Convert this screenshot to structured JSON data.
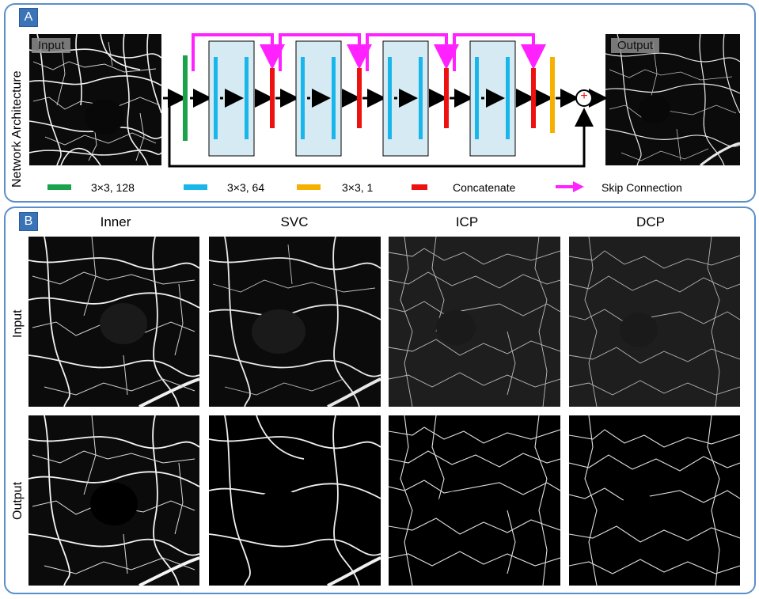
{
  "panel_a": {
    "label": "A",
    "side_title": "Network Architecture",
    "input_tag": "Input",
    "output_tag": "Output",
    "colors": {
      "green": "#1aa34a",
      "blue": "#19b6ea",
      "yellow": "#f5b000",
      "red": "#ee1111",
      "magenta": "#ff22ff",
      "block_fill": "#d6eaf3"
    },
    "legend": [
      {
        "color": "#1aa34a",
        "text": "3×3, 128"
      },
      {
        "color": "#19b6ea",
        "text": "3×3, 64"
      },
      {
        "color": "#f5b000",
        "text": "3×3, 1"
      },
      {
        "color": "#ee1111",
        "text": "Concatenate"
      },
      {
        "color": "#ff22ff",
        "text": "Skip Connection",
        "arrow": true
      }
    ],
    "add_symbol": "+"
  },
  "panel_b": {
    "label": "B",
    "columns": [
      "Inner",
      "SVC",
      "ICP",
      "DCP"
    ],
    "rows": [
      "Input",
      "Output"
    ]
  }
}
